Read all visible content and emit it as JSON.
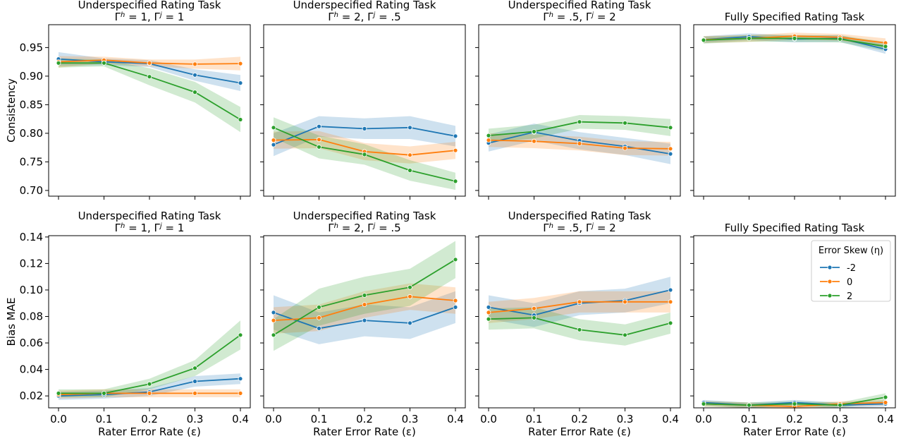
{
  "chart_data": [
    {
      "type": "line",
      "title_line1": "Underspecified Rating Task",
      "title_line2": "Γ^h = 1, Γ^j = 1",
      "ylabel": "Consistency",
      "xlabel": "",
      "x": [
        0.0,
        0.1,
        0.2,
        0.3,
        0.4
      ],
      "ylim": [
        0.69,
        0.99
      ],
      "yticks": [
        "0.70",
        "0.75",
        "0.80",
        "0.85",
        "0.90",
        "0.95"
      ],
      "series": [
        {
          "name": "-2",
          "values": [
            0.93,
            0.925,
            0.922,
            0.902,
            0.888
          ],
          "band": [
            0.012,
            0.006,
            0.006,
            0.01,
            0.014
          ]
        },
        {
          "name": "0",
          "values": [
            0.925,
            0.928,
            0.923,
            0.921,
            0.922
          ],
          "band": [
            0.01,
            0.006,
            0.006,
            0.008,
            0.012
          ]
        },
        {
          "name": "2",
          "values": [
            0.923,
            0.923,
            0.899,
            0.872,
            0.824
          ],
          "band": [
            0.008,
            0.006,
            0.015,
            0.018,
            0.022
          ]
        }
      ]
    },
    {
      "type": "line",
      "title_line1": "Underspecified Rating Task",
      "title_line2": "Γ^h = 2, Γ^j = .5",
      "ylabel": "",
      "xlabel": "",
      "x": [
        0.0,
        0.1,
        0.2,
        0.3,
        0.4
      ],
      "ylim": [
        0.69,
        0.99
      ],
      "yticks": [],
      "series": [
        {
          "name": "-2",
          "values": [
            0.78,
            0.812,
            0.808,
            0.81,
            0.795
          ],
          "band": [
            0.02,
            0.018,
            0.018,
            0.02,
            0.018
          ]
        },
        {
          "name": "0",
          "values": [
            0.788,
            0.789,
            0.768,
            0.762,
            0.77
          ],
          "band": [
            0.015,
            0.015,
            0.015,
            0.015,
            0.015
          ]
        },
        {
          "name": "2",
          "values": [
            0.81,
            0.776,
            0.763,
            0.735,
            0.716
          ],
          "band": [
            0.018,
            0.02,
            0.018,
            0.018,
            0.015
          ]
        }
      ]
    },
    {
      "type": "line",
      "title_line1": "Underspecified Rating Task",
      "title_line2": "Γ^h = .5, Γ^j = 2",
      "ylabel": "",
      "xlabel": "",
      "x": [
        0.0,
        0.1,
        0.2,
        0.3,
        0.4
      ],
      "ylim": [
        0.69,
        0.99
      ],
      "yticks": [],
      "series": [
        {
          "name": "-2",
          "values": [
            0.783,
            0.802,
            0.787,
            0.777,
            0.764
          ],
          "band": [
            0.015,
            0.015,
            0.015,
            0.015,
            0.018
          ]
        },
        {
          "name": "0",
          "values": [
            0.788,
            0.786,
            0.782,
            0.774,
            0.773
          ],
          "band": [
            0.012,
            0.012,
            0.012,
            0.012,
            0.012
          ]
        },
        {
          "name": "2",
          "values": [
            0.796,
            0.803,
            0.82,
            0.818,
            0.81
          ],
          "band": [
            0.012,
            0.012,
            0.012,
            0.012,
            0.015
          ]
        }
      ]
    },
    {
      "type": "line",
      "title_line1": "",
      "title_line2": "Fully Specified Rating Task",
      "ylabel": "",
      "xlabel": "",
      "x": [
        0.0,
        0.1,
        0.2,
        0.3,
        0.4
      ],
      "ylim": [
        0.69,
        0.99
      ],
      "yticks": [],
      "series": [
        {
          "name": "-2",
          "values": [
            0.964,
            0.969,
            0.965,
            0.966,
            0.947
          ],
          "band": [
            0.006,
            0.006,
            0.006,
            0.006,
            0.008
          ]
        },
        {
          "name": "0",
          "values": [
            0.964,
            0.966,
            0.97,
            0.968,
            0.958
          ],
          "band": [
            0.006,
            0.006,
            0.006,
            0.006,
            0.008
          ]
        },
        {
          "name": "2",
          "values": [
            0.963,
            0.966,
            0.966,
            0.965,
            0.952
          ],
          "band": [
            0.006,
            0.006,
            0.006,
            0.006,
            0.008
          ]
        }
      ]
    },
    {
      "type": "line",
      "title_line1": "Underspecified Rating Task",
      "title_line2": "Γ^h = 1, Γ^j = 1",
      "ylabel": "Bias MAE",
      "xlabel": "Rater Error Rate (ε)",
      "x": [
        0.0,
        0.1,
        0.2,
        0.3,
        0.4
      ],
      "ylim": [
        0.011,
        0.141
      ],
      "yticks": [
        "0.02",
        "0.04",
        "0.06",
        "0.08",
        "0.10",
        "0.12",
        "0.14"
      ],
      "xticks": [
        "0.0",
        "0.1",
        "0.2",
        "0.3",
        "0.4"
      ],
      "series": [
        {
          "name": "-2",
          "values": [
            0.02,
            0.021,
            0.023,
            0.031,
            0.033
          ],
          "band": [
            0.003,
            0.003,
            0.003,
            0.004,
            0.004
          ]
        },
        {
          "name": "0",
          "values": [
            0.021,
            0.022,
            0.022,
            0.022,
            0.022
          ],
          "band": [
            0.003,
            0.003,
            0.003,
            0.003,
            0.003
          ]
        },
        {
          "name": "2",
          "values": [
            0.022,
            0.022,
            0.029,
            0.041,
            0.066
          ],
          "band": [
            0.003,
            0.003,
            0.004,
            0.006,
            0.011
          ]
        }
      ]
    },
    {
      "type": "line",
      "title_line1": "Underspecified Rating Task",
      "title_line2": "Γ^h = 2, Γ^j = .5",
      "ylabel": "",
      "xlabel": "Rater Error Rate (ε)",
      "x": [
        0.0,
        0.1,
        0.2,
        0.3,
        0.4
      ],
      "ylim": [
        0.011,
        0.141
      ],
      "yticks": [],
      "xticks": [
        "0.0",
        "0.1",
        "0.2",
        "0.3",
        "0.4"
      ],
      "series": [
        {
          "name": "-2",
          "values": [
            0.083,
            0.071,
            0.077,
            0.075,
            0.087
          ],
          "band": [
            0.013,
            0.012,
            0.012,
            0.012,
            0.012
          ]
        },
        {
          "name": "0",
          "values": [
            0.077,
            0.079,
            0.089,
            0.095,
            0.092
          ],
          "band": [
            0.01,
            0.01,
            0.01,
            0.01,
            0.01
          ]
        },
        {
          "name": "2",
          "values": [
            0.066,
            0.087,
            0.096,
            0.102,
            0.123
          ],
          "band": [
            0.012,
            0.014,
            0.014,
            0.014,
            0.014
          ]
        }
      ]
    },
    {
      "type": "line",
      "title_line1": "Underspecified Rating Task",
      "title_line2": "Γ^h = .5, Γ^j = 2",
      "ylabel": "",
      "xlabel": "Rater Error Rate (ε)",
      "x": [
        0.0,
        0.1,
        0.2,
        0.3,
        0.4
      ],
      "ylim": [
        0.011,
        0.141
      ],
      "yticks": [],
      "xticks": [
        "0.0",
        "0.1",
        "0.2",
        "0.3",
        "0.4"
      ],
      "series": [
        {
          "name": "-2",
          "values": [
            0.087,
            0.081,
            0.09,
            0.092,
            0.1
          ],
          "band": [
            0.009,
            0.009,
            0.009,
            0.009,
            0.01
          ]
        },
        {
          "name": "0",
          "values": [
            0.083,
            0.086,
            0.091,
            0.091,
            0.091
          ],
          "band": [
            0.008,
            0.008,
            0.008,
            0.008,
            0.008
          ]
        },
        {
          "name": "2",
          "values": [
            0.078,
            0.079,
            0.07,
            0.066,
            0.075
          ],
          "band": [
            0.008,
            0.008,
            0.008,
            0.008,
            0.008
          ]
        }
      ]
    },
    {
      "type": "line",
      "title_line1": "",
      "title_line2": "Fully Specified Rating Task",
      "ylabel": "",
      "xlabel": "Rater Error Rate (ε)",
      "x": [
        0.0,
        0.1,
        0.2,
        0.3,
        0.4
      ],
      "ylim": [
        0.011,
        0.141
      ],
      "yticks": [],
      "xticks": [
        "0.0",
        "0.1",
        "0.2",
        "0.3",
        "0.4"
      ],
      "legend": {
        "title": "Error Skew (η)",
        "placement": "top-right"
      },
      "series": [
        {
          "name": "-2",
          "values": [
            0.015,
            0.013,
            0.015,
            0.013,
            0.014
          ],
          "band": [
            0.002,
            0.002,
            0.002,
            0.002,
            0.002
          ]
        },
        {
          "name": "0",
          "values": [
            0.014,
            0.013,
            0.012,
            0.014,
            0.015
          ],
          "band": [
            0.002,
            0.002,
            0.002,
            0.002,
            0.002
          ]
        },
        {
          "name": "2",
          "values": [
            0.014,
            0.013,
            0.014,
            0.013,
            0.019
          ],
          "band": [
            0.002,
            0.002,
            0.002,
            0.002,
            0.003
          ]
        }
      ]
    }
  ],
  "colors": {
    "-2": "#1f77b4",
    "0": "#ff7f0e",
    "2": "#2ca02c"
  }
}
